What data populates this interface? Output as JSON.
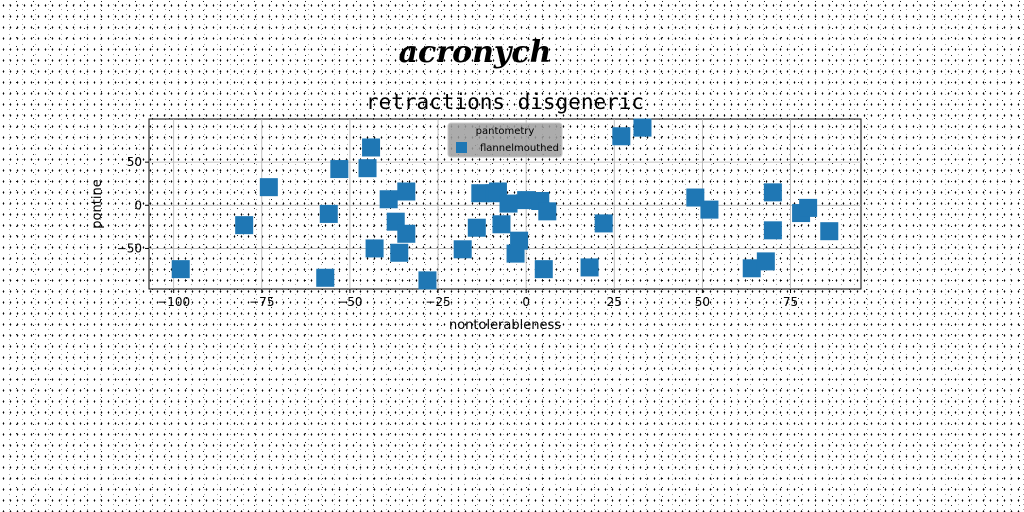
{
  "chart_data": {
    "type": "scatter",
    "suptitle": "acronych",
    "title": "retractions disgeneric",
    "xlabel": "nontolerableness",
    "ylabel": "pontine",
    "xlim": [
      -107,
      95
    ],
    "ylim": [
      -97,
      100
    ],
    "xticks": [
      -100,
      -75,
      -50,
      -25,
      0,
      25,
      50,
      75
    ],
    "yticks": [
      -50,
      0,
      50
    ],
    "grid": true,
    "legend": {
      "title": "pantometry",
      "placement": "top-center"
    },
    "marker": "square",
    "series": [
      {
        "name": "flannelmouthed",
        "color": "#1f77b4",
        "x": [
          -98,
          -80,
          -73,
          -57,
          -56,
          -53,
          -45,
          -44,
          -43,
          -39,
          -37,
          -36,
          -34,
          -34,
          -28,
          -18,
          -14,
          -13,
          -9,
          -8,
          -7,
          -5,
          -3,
          -2,
          0,
          4,
          5,
          6,
          18,
          22,
          27,
          33,
          48,
          52,
          64,
          68,
          70,
          70,
          78,
          80,
          86
        ],
        "y": [
          -74,
          -23,
          21,
          -84,
          -10,
          42,
          43,
          67,
          -50,
          7,
          -19,
          -55,
          -33,
          16,
          -87,
          -51,
          -26,
          14,
          14,
          16,
          -22,
          2,
          -56,
          -41,
          6,
          5,
          -74,
          -7,
          -72,
          -21,
          80,
          90,
          9,
          -5,
          -73,
          -65,
          15,
          -29,
          -9,
          -3,
          -30
        ]
      }
    ]
  }
}
